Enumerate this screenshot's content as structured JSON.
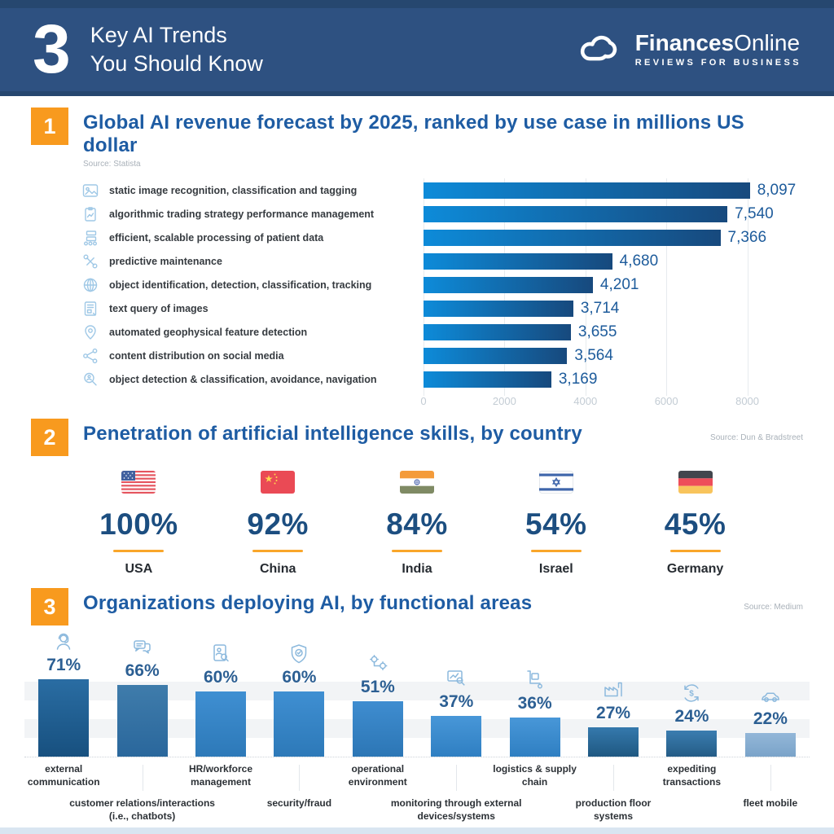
{
  "header": {
    "count": "3",
    "title_line1": "Key AI Trends",
    "title_line2": "You Should Know",
    "brand_bold": "Finances",
    "brand_light": "Online",
    "brand_tagline": "REVIEWS FOR BUSINESS"
  },
  "colors": {
    "header_bg": "#2e5181",
    "header_strip": "#26476f",
    "accent_orange": "#f89a1e",
    "section_title_blue": "#1e5ca3",
    "value_blue": "#1d5b9b",
    "percent_navy": "#1c4e80",
    "underline_orange": "#f9a62a",
    "icon_blue": "#8cb9dd"
  },
  "sections": [
    {
      "number": "1",
      "title": "Global AI revenue forecast by 2025, ranked by use case in millions US dollar",
      "source": "Source: Statista"
    },
    {
      "number": "2",
      "title": "Penetration of artificial intelligence skills, by country",
      "source": "Source: Dun & Bradstreet"
    },
    {
      "number": "3",
      "title": "Organizations deploying AI, by functional areas",
      "source": "Source: Medium"
    }
  ],
  "chart_data": [
    {
      "type": "bar",
      "orientation": "horizontal",
      "title": "Global AI revenue forecast by 2025, ranked by use case in millions US dollar",
      "source": "Statista",
      "unit": "millions US dollar",
      "categories": [
        "static image recognition, classification and tagging",
        "algorithmic trading strategy performance management",
        "efficient, scalable processing of patient data",
        "predictive maintenance",
        "object identification, detection, classification, tracking",
        "text query of images",
        "automated geophysical feature detection",
        "content distribution on social media",
        "object detection & classification, avoidance, navigation"
      ],
      "values": [
        8097,
        7540,
        7366,
        4680,
        4201,
        3714,
        3655,
        3564,
        3169
      ],
      "value_labels": [
        "8,097",
        "7,540",
        "7,366",
        "4,680",
        "4,201",
        "3,714",
        "3,655",
        "3,564",
        "3,169"
      ],
      "icons": [
        "image-recognition",
        "algorithmic-trading",
        "patient-data",
        "predictive-maintenance",
        "object-identification",
        "text-query",
        "geophysical-detection",
        "social-share",
        "object-navigation"
      ],
      "xlim": [
        0,
        9800
      ],
      "xticks": [
        0,
        2000,
        4000,
        6000,
        8000
      ],
      "xtick_labels": [
        "0",
        "2000",
        "4000",
        "6000",
        "8000"
      ],
      "bar_gradient": [
        "#0d8bd9",
        "#17497d"
      ],
      "grid": true,
      "legend": false
    },
    {
      "type": "pictorial-percent",
      "title": "Penetration of artificial intelligence skills, by country",
      "source": "Dun & Bradstreet",
      "categories": [
        "USA",
        "China",
        "India",
        "Israel",
        "Germany"
      ],
      "values": [
        100,
        92,
        84,
        54,
        45
      ],
      "value_labels": [
        "100%",
        "92%",
        "84%",
        "54%",
        "45%"
      ],
      "icons": [
        "usa-flag",
        "china-flag",
        "india-flag",
        "israel-flag",
        "germany-flag"
      ]
    },
    {
      "type": "bar",
      "orientation": "vertical",
      "title": "Organizations deploying AI, by functional areas",
      "source": "Medium",
      "categories": [
        "external communication",
        "customer relations/interactions (i.e., chatbots)",
        "HR/workforce management",
        "security/fraud",
        "operational environment",
        "monitoring through external devices/systems",
        "logistics & supply chain",
        "production floor systems",
        "expediting transactions",
        "fleet mobile"
      ],
      "label_lines": [
        [
          "external",
          "communication"
        ],
        [
          "customer relations/interactions",
          "(i.e., chatbots)"
        ],
        [
          "HR/workforce",
          "management"
        ],
        [
          "security/fraud"
        ],
        [
          "operational",
          "environment"
        ],
        [
          "monitoring through external",
          "devices/systems"
        ],
        [
          "logistics & supply",
          "chain"
        ],
        [
          "production floor",
          "systems"
        ],
        [
          "expediting",
          "transactions"
        ],
        [
          "fleet mobile"
        ]
      ],
      "label_row": [
        1,
        2,
        1,
        2,
        1,
        2,
        1,
        2,
        1,
        2
      ],
      "values": [
        71,
        66,
        60,
        60,
        51,
        37,
        36,
        27,
        24,
        22
      ],
      "value_labels": [
        "71%",
        "66%",
        "60%",
        "60%",
        "51%",
        "37%",
        "36%",
        "27%",
        "24%",
        "22%"
      ],
      "icons": [
        "support-agent",
        "chat-bubbles",
        "hr-document",
        "security-shield",
        "gears",
        "map-search",
        "hand-truck",
        "production-floor",
        "dollar-cycle",
        "car"
      ],
      "bar_gradients": [
        [
          "#2a6da3",
          "#17507f"
        ],
        [
          "#3f7cab",
          "#2a679c"
        ],
        [
          "#3f8fd2",
          "#2d79b8"
        ],
        [
          "#3f8fd2",
          "#2d79b8"
        ],
        [
          "#3f8dd0",
          "#2c76b5"
        ],
        [
          "#4897d8",
          "#2f7fc2"
        ],
        [
          "#4897d8",
          "#2f7fc2"
        ],
        [
          "#3579ad",
          "#1f5881"
        ],
        [
          "#3b7db0",
          "#245c86"
        ],
        [
          "#93b7d8",
          "#7aa3c9"
        ]
      ],
      "ylim": [
        0,
        100
      ],
      "grid": "horizontal-bands",
      "legend": false
    }
  ]
}
